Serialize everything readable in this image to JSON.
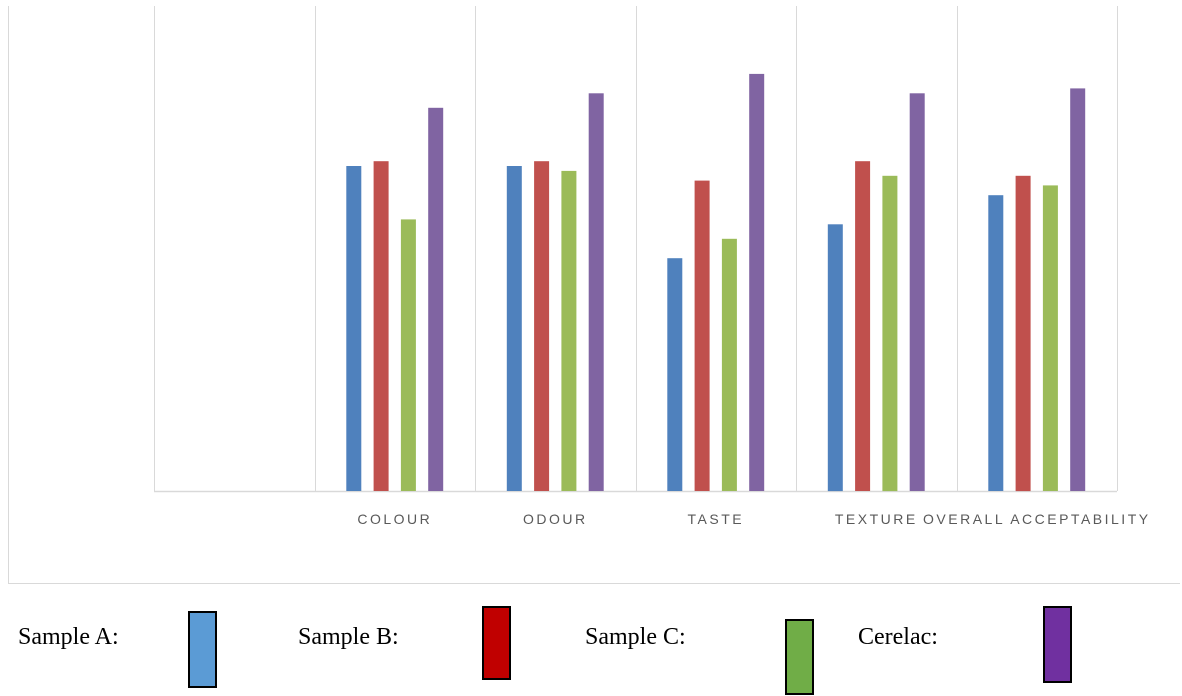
{
  "chart_data": {
    "type": "bar",
    "categories": [
      "",
      "COLOUR",
      "ODOUR",
      "TASTE",
      "TEXTURE",
      "OVERALL ACCEPTABILITY"
    ],
    "series": [
      {
        "name": "Sample A",
        "color": "#4f81bd",
        "values": [
          null,
          6.7,
          6.7,
          4.8,
          5.5,
          6.1
        ]
      },
      {
        "name": "Sample B",
        "color": "#c0504d",
        "values": [
          null,
          6.8,
          6.8,
          6.4,
          6.8,
          6.5
        ]
      },
      {
        "name": "Sample C",
        "color": "#9bbb59",
        "values": [
          null,
          5.6,
          6.6,
          5.2,
          6.5,
          6.3
        ]
      },
      {
        "name": "Cerelac",
        "color": "#8064a2",
        "values": [
          null,
          7.9,
          8.2,
          8.6,
          8.2,
          8.3
        ]
      }
    ],
    "ylim": [
      0,
      10
    ],
    "grid": true,
    "title": "",
    "xlabel": "",
    "ylabel": ""
  },
  "legend": [
    {
      "label": "Sample A:",
      "color": "#5b9bd5"
    },
    {
      "label": "Sample B:",
      "color": "#c00000"
    },
    {
      "label": "Sample C:",
      "color": "#70ad47"
    },
    {
      "label": "Cerelac:",
      "color": "#7030a0"
    }
  ]
}
